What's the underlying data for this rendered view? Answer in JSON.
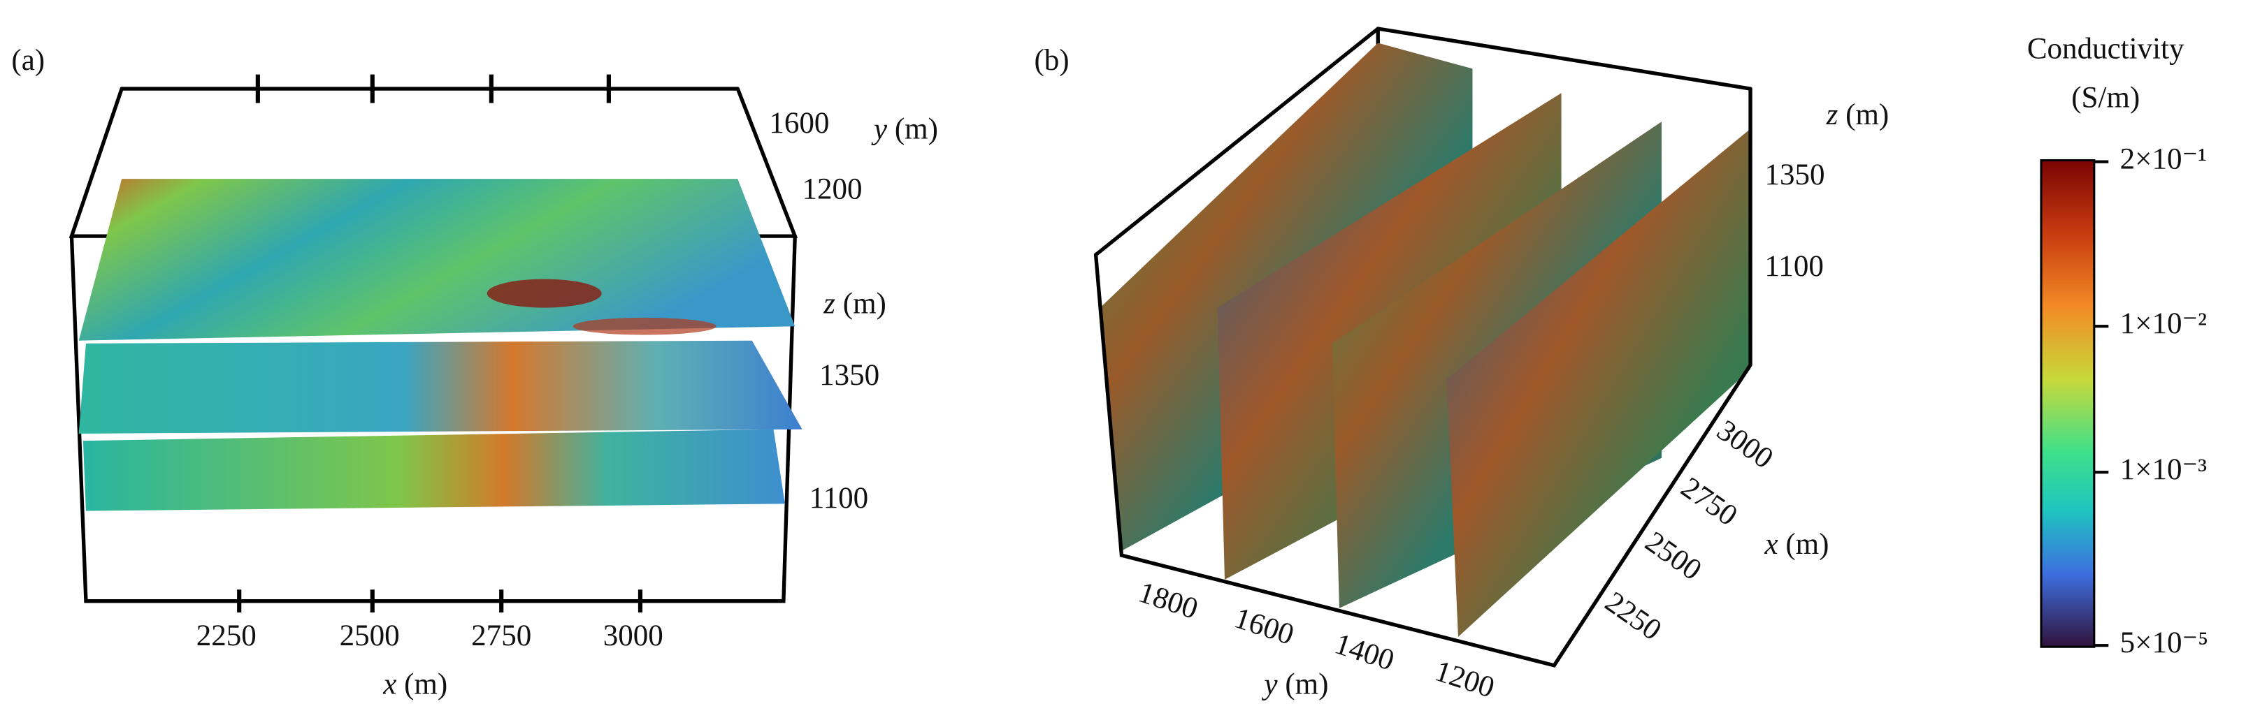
{
  "panel_a": {
    "label": "(a)",
    "x_ticks": [
      "2250",
      "2500",
      "2750",
      "3000"
    ],
    "x_label": {
      "symbol": "x",
      "unit": "(m)"
    },
    "y_tick": "1600",
    "y_label": {
      "symbol": "y",
      "unit": "(m)"
    },
    "z_ticks": [
      "1200",
      "1350",
      "1100"
    ],
    "z_label": {
      "symbol": "z",
      "unit": "(m)"
    }
  },
  "panel_b": {
    "label": "(b)",
    "z_ticks": [
      "1350",
      "1100"
    ],
    "z_label": {
      "symbol": "z",
      "unit": "(m)"
    },
    "x_ticks": [
      "3000",
      "2750",
      "2500",
      "2250"
    ],
    "x_label": {
      "symbol": "x",
      "unit": "(m)"
    },
    "y_ticks": [
      "1800",
      "1600",
      "1400",
      "1200"
    ],
    "y_label": {
      "symbol": "y",
      "unit": "(m)"
    }
  },
  "colorbar": {
    "title": [
      "Conductivity",
      "(S/m)"
    ],
    "ticks": [
      "2×10⁻¹",
      "1×10⁻²",
      "1×10⁻³",
      "5×10⁻⁵"
    ]
  }
}
